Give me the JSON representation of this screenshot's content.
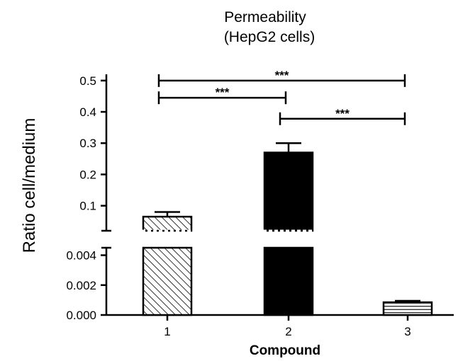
{
  "chart_data": {
    "type": "bar",
    "title": [
      "Permeability",
      "(HepG2 cells)"
    ],
    "xlabel": "Compound",
    "ylabel": "Ratio cell/medium",
    "categories": [
      "1",
      "2",
      "3"
    ],
    "values": [
      0.065,
      0.27,
      0.00085
    ],
    "errors": [
      0.015,
      0.03,
      0.0001
    ],
    "bar_fills": [
      "diagonal-hatch",
      "solid-black",
      "horizontal-lines"
    ],
    "y_axis": {
      "broken": true,
      "lower_segment": {
        "range": [
          0.0,
          0.0045
        ],
        "ticks": [
          "0.000",
          "0.002",
          "0.004"
        ],
        "tick_values": [
          0.0,
          0.002,
          0.004
        ]
      },
      "upper_segment": {
        "range": [
          0.02,
          0.52
        ],
        "ticks": [
          "0.1",
          "0.2",
          "0.3",
          "0.4",
          "0.5"
        ],
        "tick_values": [
          0.1,
          0.2,
          0.3,
          0.4,
          0.5
        ]
      }
    },
    "significance": [
      {
        "from": "1",
        "to": "3",
        "label": "***",
        "level": 0.5
      },
      {
        "from": "1",
        "to": "2",
        "label": "***",
        "level": 0.445
      },
      {
        "from": "2",
        "to": "3",
        "label": "***",
        "level": 0.378
      }
    ],
    "grid": false,
    "legend": "none"
  }
}
